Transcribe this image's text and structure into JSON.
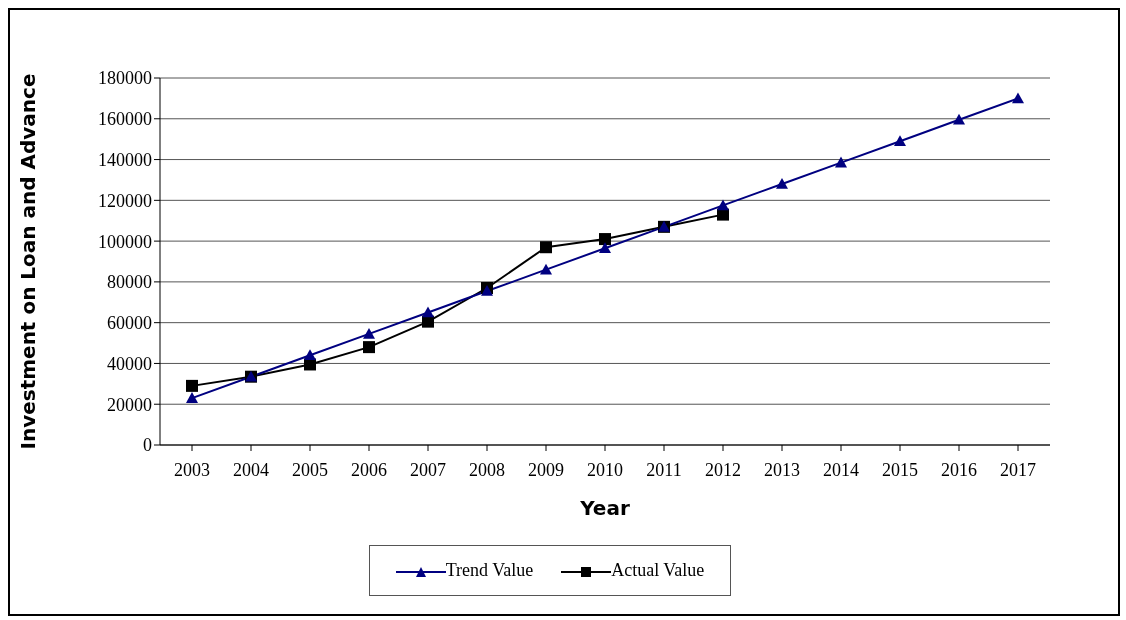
{
  "chart_data": {
    "type": "line",
    "xlabel": "Year",
    "ylabel": "Investment on Loan and Advance",
    "categories": [
      "2003",
      "2004",
      "2005",
      "2006",
      "2007",
      "2008",
      "2009",
      "2010",
      "2011",
      "2012",
      "2013",
      "2014",
      "2015",
      "2016",
      "2017"
    ],
    "series": [
      {
        "name": "Trend Value",
        "color": "#000080",
        "marker": "triangle",
        "values": [
          23000,
          33500,
          44000,
          54500,
          65000,
          75500,
          86000,
          96500,
          107000,
          117500,
          128000,
          138500,
          149000,
          159500,
          170000
        ]
      },
      {
        "name": "Actual Value",
        "color": "#000000",
        "marker": "square",
        "values": [
          29000,
          33500,
          39500,
          48000,
          60500,
          77000,
          97000,
          101000,
          107000,
          113000,
          null,
          null,
          null,
          null,
          null
        ]
      }
    ],
    "ylim": [
      0,
      180000
    ],
    "yticks": [
      0,
      20000,
      40000,
      60000,
      80000,
      100000,
      120000,
      140000,
      160000,
      180000
    ],
    "grid": "y",
    "legend": "bottom",
    "line_style": "solid"
  }
}
